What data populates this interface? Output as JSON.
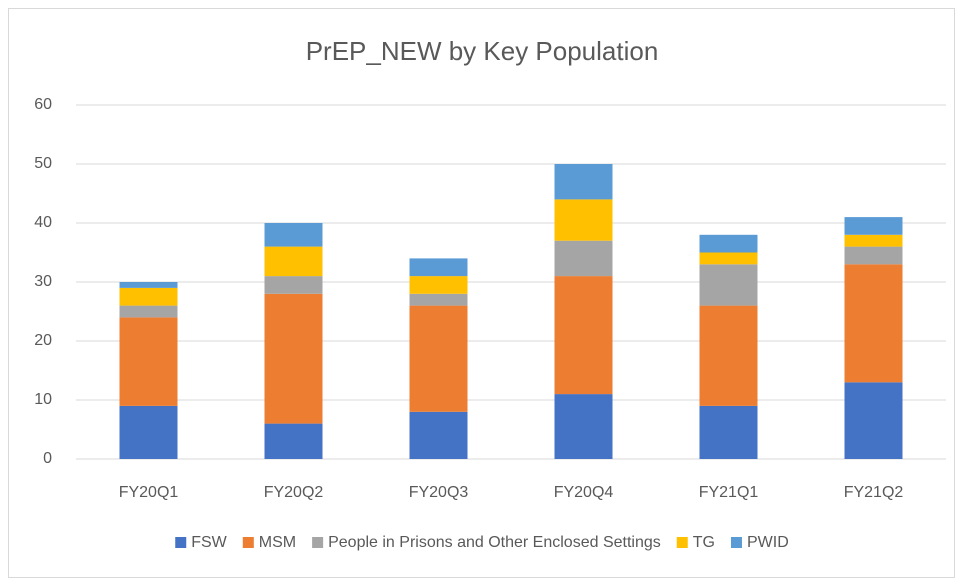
{
  "chart_data": {
    "type": "stacked_bar",
    "title": "PrEP_NEW by Key Population",
    "categories": [
      "FY20Q1",
      "FY20Q2",
      "FY20Q3",
      "FY20Q4",
      "FY21Q1",
      "FY21Q2"
    ],
    "series": [
      {
        "name": "FSW",
        "color": "#4472c4",
        "values": [
          9,
          6,
          8,
          11,
          9,
          13
        ]
      },
      {
        "name": "MSM",
        "color": "#ed7d31",
        "values": [
          15,
          22,
          18,
          20,
          17,
          20
        ]
      },
      {
        "name": "People in Prisons and Other Enclosed Settings",
        "color": "#a5a5a5",
        "values": [
          2,
          3,
          2,
          6,
          7,
          3
        ]
      },
      {
        "name": "TG",
        "color": "#ffc000",
        "values": [
          3,
          5,
          3,
          7,
          2,
          2
        ]
      },
      {
        "name": "PWID",
        "color": "#5b9bd5",
        "values": [
          1,
          4,
          3,
          6,
          3,
          3
        ]
      }
    ],
    "ylim": [
      0,
      60
    ],
    "yticks": [
      0,
      10,
      20,
      30,
      40,
      50,
      60
    ],
    "grid": true,
    "legend": "bottom"
  }
}
